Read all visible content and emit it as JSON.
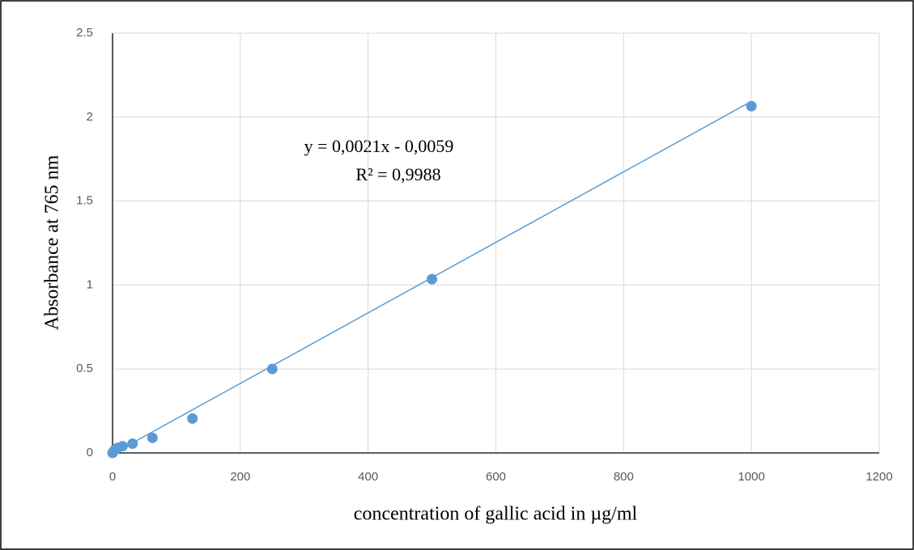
{
  "chart_data": {
    "type": "scatter",
    "x_label": "concentration of gallic acid in µg/ml",
    "y_label": "Absorbance at 765 nm",
    "annotations": [
      "y = 0,0021x - 0,0059",
      "R² = 0,9988"
    ],
    "series": [
      {
        "color": "#5b9bd5",
        "x": [
          0,
          1.95,
          3.9,
          7.8,
          15.6,
          31.25,
          62.5,
          125,
          250,
          500,
          1000
        ],
        "values": [
          0,
          0.01,
          0.02,
          0.03,
          0.04,
          0.055,
          0.09,
          0.205,
          0.5,
          1.035,
          2.065
        ]
      }
    ],
    "trendline": {
      "color": "#5b9bd5",
      "x": [
        2.8,
        1000
      ],
      "values": [
        0,
        2.0941
      ]
    },
    "xlim": [
      0,
      1200
    ],
    "xticks": [
      0,
      200,
      400,
      600,
      800,
      1000,
      1200
    ],
    "ylim": [
      0,
      2.5
    ],
    "yticks": [
      0,
      0.5,
      1,
      1.5,
      2,
      2.5
    ],
    "grid": true
  }
}
